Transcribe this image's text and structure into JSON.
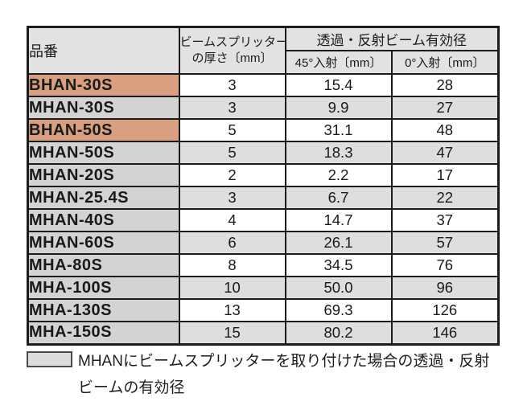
{
  "colors": {
    "highlight_orange": "#d8a080",
    "name_column_gray": "#d3d3d3",
    "stripe_gray": "#dedede",
    "header_gray": "#e2e2e2",
    "border_black": "#1c1c1c",
    "legend_swatch_gray": "#dcdcdc"
  },
  "table": {
    "header": {
      "part_number": "品番",
      "thickness_line1": "ビームスプリッター",
      "thickness_line2": "の厚さ〔mm〕",
      "beam_diameter_group": "透過・反射ビーム有効径",
      "incidence_45": "45°入射〔mm〕",
      "incidence_0": "0°入射〔mm〕"
    },
    "rows": [
      {
        "part": "BHAN-30S",
        "thickness": "3",
        "dia_45": "15.4",
        "dia_0": "28"
      },
      {
        "part": "MHAN-30S",
        "thickness": "3",
        "dia_45": "9.9",
        "dia_0": "27"
      },
      {
        "part": "BHAN-50S",
        "thickness": "5",
        "dia_45": "31.1",
        "dia_0": "48"
      },
      {
        "part": "MHAN-50S",
        "thickness": "5",
        "dia_45": "18.3",
        "dia_0": "47"
      },
      {
        "part": "MHAN-20S",
        "thickness": "2",
        "dia_45": "2.2",
        "dia_0": "17"
      },
      {
        "part": "MHAN-25.4S",
        "thickness": "3",
        "dia_45": "6.7",
        "dia_0": "22"
      },
      {
        "part": "MHAN-40S",
        "thickness": "4",
        "dia_45": "14.7",
        "dia_0": "37"
      },
      {
        "part": "MHAN-60S",
        "thickness": "6",
        "dia_45": "26.1",
        "dia_0": "57"
      },
      {
        "part": "MHA-80S",
        "thickness": "8",
        "dia_45": "34.5",
        "dia_0": "76"
      },
      {
        "part": "MHA-100S",
        "thickness": "10",
        "dia_45": "50.0",
        "dia_0": "96"
      },
      {
        "part": "MHA-130S",
        "thickness": "13",
        "dia_45": "69.3",
        "dia_0": "126"
      },
      {
        "part": "MHA-150S",
        "thickness": "15",
        "dia_45": "80.2",
        "dia_0": "146"
      }
    ]
  },
  "legend": {
    "note": "MHANにビームスプリッターを取り付けた場合の透過・反射ビームの有効径"
  }
}
